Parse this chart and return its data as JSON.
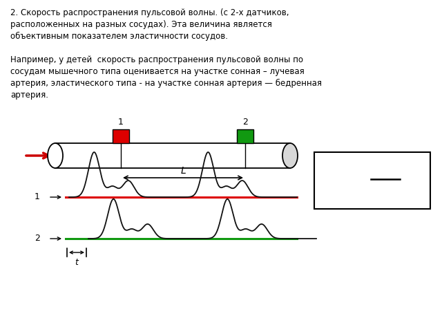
{
  "bg_color": "#ffffff",
  "text_main": "2. Скорость распространения пульсовой волны. (с 2-х датчиков,\nрасположенных на разных сосудах). Эта величина является\nобъективным показателем эластичности сосудов.",
  "text_secondary": "Например, у детей  скорость распространения пульсовой волны по\nсосудам мышечного типа оценивается на участке сонная – лучевая\nартерия, эластического типа - на участке сонная артерия — бедренная\nартерия.",
  "arrow_color": "#cc0000",
  "sensor1_color": "#dd0000",
  "sensor2_color": "#119911",
  "baseline1_color": "#dd0000",
  "baseline2_color": "#119911",
  "wave_color": "#111111"
}
